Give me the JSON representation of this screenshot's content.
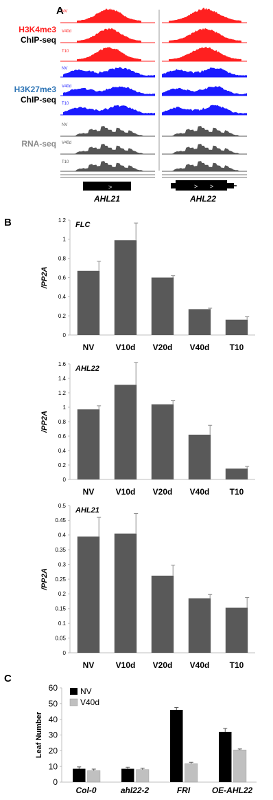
{
  "panels": {
    "a": {
      "letter": "A"
    },
    "b": {
      "letter": "B"
    },
    "c": {
      "letter": "C"
    }
  },
  "colors": {
    "k4": "#ff2020",
    "k27": "#1a1aff",
    "rna": "#555555",
    "bar": "#595959",
    "nv": "#000000",
    "v40d": "#c0c0c0",
    "title_blue": "#2e75b6",
    "title_gray": "#8c8c8c"
  },
  "tracks": {
    "h3k4me3": {
      "mark": "H3K4me3",
      "assay": "ChIP-seq",
      "samples": [
        "NV",
        "V40d",
        "T10"
      ]
    },
    "h3k27me3": {
      "mark": "H3K27me3",
      "assay": "ChIP-seq",
      "samples": [
        "NV",
        "V40d",
        "T10"
      ]
    },
    "rna": {
      "mark": "RNA-seq",
      "samples": [
        "NV",
        "V40d",
        "T10"
      ]
    },
    "genes": [
      "AHL21",
      "AHL22"
    ]
  },
  "chart_data": [
    {
      "type": "bar",
      "gene_label": "FLC",
      "ylabel": "/PP2A",
      "categories": [
        "NV",
        "V10d",
        "V20d",
        "V40d",
        "T10"
      ],
      "values": [
        0.67,
        0.99,
        0.6,
        0.27,
        0.16
      ],
      "errors": [
        0.1,
        0.18,
        0.02,
        0.01,
        0.03
      ],
      "ylim": [
        0,
        1.2
      ],
      "yticks": [
        "0",
        "0.2",
        "0.4",
        "0.6",
        "0.8",
        "1",
        "1.2"
      ]
    },
    {
      "type": "bar",
      "gene_label": "AHL22",
      "ylabel": "/PP2A",
      "categories": [
        "NV",
        "V10d",
        "V20d",
        "V40d",
        "T10"
      ],
      "values": [
        0.97,
        1.31,
        1.04,
        0.62,
        0.15
      ],
      "errors": [
        0.05,
        0.31,
        0.05,
        0.13,
        0.03
      ],
      "ylim": [
        0,
        1.6
      ],
      "yticks": [
        "0",
        "0.2",
        "0.4",
        "0.6",
        "0.8",
        "1",
        "1.2",
        "1.4",
        "1.6"
      ]
    },
    {
      "type": "bar",
      "gene_label": "AHL21",
      "ylabel": "/PP2A",
      "categories": [
        "NV",
        "V10d",
        "V20d",
        "V40d",
        "T10"
      ],
      "values": [
        0.395,
        0.405,
        0.262,
        0.185,
        0.153
      ],
      "errors": [
        0.065,
        0.068,
        0.036,
        0.013,
        0.035
      ],
      "ylim": [
        0,
        0.5
      ],
      "yticks": [
        "0",
        "0.05",
        "0.1",
        "0.15",
        "0.2",
        "0.25",
        "0.3",
        "0.35",
        "0.4",
        "0.45",
        "0.5"
      ]
    },
    {
      "type": "bar",
      "ylabel": "Leaf Number",
      "categories": [
        "Col-0",
        "ahl22-2",
        "FRI",
        "OE-AHL22"
      ],
      "series": [
        {
          "name": "NV",
          "values": [
            8.5,
            8.5,
            46,
            32
          ],
          "errors": [
            1.2,
            1.0,
            1.5,
            2.2
          ]
        },
        {
          "name": "V40d",
          "values": [
            7.3,
            8.0,
            11.8,
            20.5
          ],
          "errors": [
            1.0,
            0.8,
            0.8,
            0.6
          ]
        }
      ],
      "ylim": [
        0,
        60
      ],
      "yticks": [
        "0",
        "10",
        "20",
        "30",
        "40",
        "50",
        "60"
      ],
      "legend": "top-left"
    }
  ]
}
